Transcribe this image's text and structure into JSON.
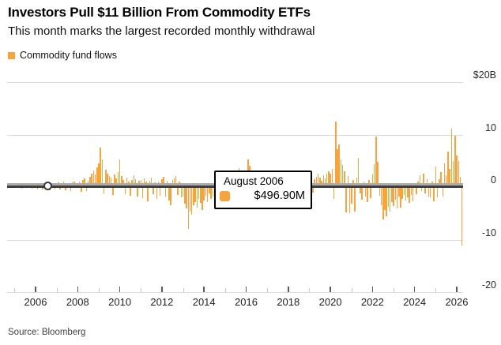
{
  "header": {
    "title": "Investors Pull $11 Billion From Commodity ETFs",
    "subtitle": "This month marks the largest recorded monthly withdrawal"
  },
  "legend": {
    "label": "Commodity fund flows",
    "swatch_color": "#F7A43C"
  },
  "tooltip": {
    "date": "August 2006",
    "value": "$496.90M"
  },
  "footer": {
    "source": "Source: Bloomberg"
  },
  "chart_data": {
    "type": "bar",
    "title": "Commodity fund flows",
    "unit": "billions USD (monthly fund flows)",
    "frequency": "monthly",
    "start_month": "2004-10",
    "end_month": "2026-04",
    "ylim": [
      -20,
      20
    ],
    "grid": true,
    "legend_position": "top-left",
    "bar_color": "#F7A43C",
    "y_tick_labels": [
      "$20B",
      "10",
      "0",
      "-10",
      "-20"
    ],
    "y_tick_values": [
      20,
      10,
      0,
      -10,
      -20
    ],
    "x_tick_labels": [
      "2006",
      "2008",
      "2010",
      "2012",
      "2014",
      "2016",
      "2018",
      "2020",
      "2022",
      "2024",
      "2026"
    ],
    "highlight": {
      "index": 22,
      "month": "2006-08",
      "label": "August 2006",
      "value_label": "$496.90M",
      "value_billions": 0.4969
    },
    "values": [
      0.3,
      0.5,
      0.4,
      0.3,
      -0.2,
      0.4,
      0.2,
      -0.3,
      0.5,
      0.3,
      -0.2,
      0.4,
      0.6,
      -0.3,
      0.4,
      0.5,
      -0.4,
      0.6,
      0.8,
      -0.5,
      0.4,
      0.3,
      0.4969,
      -0.6,
      0.5,
      0.7,
      -0.4,
      0.6,
      0.9,
      -0.5,
      0.7,
      1.0,
      -0.6,
      0.8,
      0.5,
      -0.7,
      0.9,
      1.1,
      0.6,
      0.8,
      1.1,
      -0.9,
      1.3,
      1.6,
      -0.7,
      1.2,
      1.9,
      2.6,
      3.2,
      2.4,
      3.8,
      4.5,
      7.5,
      5.2,
      -1.2,
      3.3,
      2.6,
      2.1,
      1.8,
      -1.5,
      2.4,
      1.6,
      2.9,
      5.2,
      2.1,
      1.4,
      -1.3,
      1.8,
      1.1,
      -1.6,
      1.3,
      2.2,
      1.5,
      -1.8,
      1.2,
      1.4,
      -2.1,
      1.6,
      1.0,
      -2.7,
      1.2,
      1.8,
      -1.4,
      0.9,
      -2.2,
      1.1,
      -1.6,
      1.5,
      2.0,
      -1.8,
      1.2,
      -2.6,
      -3.4,
      1.4,
      1.7,
      2.1,
      -1.5,
      1.0,
      -2.0,
      -1.8,
      -3.2,
      -4.1,
      -7.9,
      -4.6,
      -5.2,
      -3.5,
      -2.8,
      -3.9,
      -2.2,
      -3.0,
      -4.4,
      -2.5,
      -1.6,
      -2.9,
      -1.2,
      -2.2,
      -1.8,
      -0.9,
      -1.5,
      -2.4,
      -1.1,
      -1.9,
      -0.8,
      -1.4,
      1.2,
      -0.9,
      1.6,
      -1.8,
      -1.2,
      2.1,
      -4.2,
      3.6,
      -2.6,
      1.4,
      -1.7,
      2.8,
      5.2,
      4.0,
      2.4,
      1.8,
      3.1,
      2.2,
      1.5,
      1.0,
      1.9,
      -1.3,
      1.1,
      1.3,
      -0.8,
      1.6,
      0.9,
      -1.1,
      1.4,
      0.7,
      -0.9,
      1.2,
      1.8,
      -0.6,
      1.0,
      -0.8,
      -1.4,
      1.0,
      -1.8,
      -1.2,
      0.9,
      -2.2,
      -1.5,
      -0.7,
      -2.6,
      -1.1,
      -1.9,
      1.0,
      2.5,
      -1.0,
      1.5,
      2.0,
      2.5,
      1.8,
      1.2,
      2.2,
      1.6,
      2.6,
      3.0,
      2.6,
      3.4,
      -2.2,
      12.5,
      7.2,
      8.1,
      5.3,
      4.2,
      3.0,
      -4.8,
      2.1,
      -5.0,
      -3.2,
      1.4,
      -4.6,
      1.8,
      5.5,
      -1.2,
      -2.4,
      1.1,
      -1.8,
      -2.8,
      1.3,
      -2.1,
      2.4,
      4.3,
      9.6,
      4.8,
      -1.6,
      -3.4,
      -6.1,
      -4.3,
      -5.5,
      -3.8,
      -4.7,
      -2.9,
      -3.6,
      -2.4,
      -4.0,
      -1.8,
      -3.9,
      -2.2,
      -1.5,
      -2.5,
      -2.0,
      -3.0,
      -1.5,
      -2.7,
      0.8,
      -1.3,
      1.0,
      2.2,
      -0.7,
      2.5,
      -1.2,
      1.5,
      -1.8,
      -2.0,
      1.0,
      -2.7,
      3.9,
      -2.0,
      1.5,
      2.8,
      -1.8,
      4.5,
      2.2,
      6.7,
      3.5,
      11.2,
      5.0,
      9.7,
      6.0,
      5.0,
      2.0,
      -11.2
    ]
  }
}
